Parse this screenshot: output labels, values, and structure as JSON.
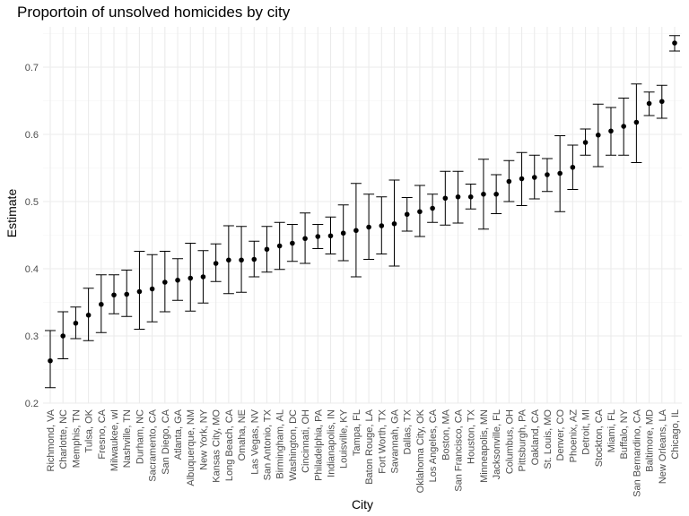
{
  "chart_data": {
    "type": "scatter",
    "title": "Proportoin of unsolved homicides by city",
    "xlabel": "City",
    "ylabel": "Estimate",
    "ylim": [
      0.2,
      0.76
    ],
    "yticks": [
      "0.2",
      "0.3",
      "0.4",
      "0.5",
      "0.6",
      "0.7"
    ],
    "grid": true,
    "error_bars": true,
    "points": [
      {
        "city": "Richmond, VA",
        "estimate": 0.263,
        "lower": 0.223,
        "upper": 0.308
      },
      {
        "city": "Charlotte, NC",
        "estimate": 0.3,
        "lower": 0.266,
        "upper": 0.336
      },
      {
        "city": "Memphis, TN",
        "estimate": 0.319,
        "lower": 0.296,
        "upper": 0.343
      },
      {
        "city": "Tulsa, OK",
        "estimate": 0.331,
        "lower": 0.293,
        "upper": 0.371
      },
      {
        "city": "Fresno, CA",
        "estimate": 0.347,
        "lower": 0.305,
        "upper": 0.391
      },
      {
        "city": "Milwaukee, wI",
        "estimate": 0.361,
        "lower": 0.333,
        "upper": 0.391
      },
      {
        "city": "Nashville, TN",
        "estimate": 0.362,
        "lower": 0.329,
        "upper": 0.398
      },
      {
        "city": "Durham, NC",
        "estimate": 0.366,
        "lower": 0.31,
        "upper": 0.426
      },
      {
        "city": "Sacramento, CA",
        "estimate": 0.37,
        "lower": 0.321,
        "upper": 0.421
      },
      {
        "city": "San Diego, CA",
        "estimate": 0.38,
        "lower": 0.336,
        "upper": 0.426
      },
      {
        "city": "Atlanta, GA",
        "estimate": 0.383,
        "lower": 0.353,
        "upper": 0.415
      },
      {
        "city": "Albuquerque, NM",
        "estimate": 0.386,
        "lower": 0.337,
        "upper": 0.438
      },
      {
        "city": "New York, NY",
        "estimate": 0.388,
        "lower": 0.349,
        "upper": 0.427
      },
      {
        "city": "Kansas City, MO",
        "estimate": 0.408,
        "lower": 0.381,
        "upper": 0.437
      },
      {
        "city": "Long Beach, CA",
        "estimate": 0.413,
        "lower": 0.363,
        "upper": 0.464
      },
      {
        "city": "Omaha, NE",
        "estimate": 0.413,
        "lower": 0.365,
        "upper": 0.463
      },
      {
        "city": "Las Vegas, NV",
        "estimate": 0.414,
        "lower": 0.388,
        "upper": 0.441
      },
      {
        "city": "San Antonio, TX",
        "estimate": 0.429,
        "lower": 0.395,
        "upper": 0.463
      },
      {
        "city": "Birmingham, AL",
        "estimate": 0.434,
        "lower": 0.399,
        "upper": 0.469
      },
      {
        "city": "Washington, DC",
        "estimate": 0.438,
        "lower": 0.411,
        "upper": 0.466
      },
      {
        "city": "Cincinnati, OH",
        "estimate": 0.445,
        "lower": 0.408,
        "upper": 0.483
      },
      {
        "city": "Philadelphia, PA",
        "estimate": 0.448,
        "lower": 0.43,
        "upper": 0.466
      },
      {
        "city": "Indianapolis, IN",
        "estimate": 0.449,
        "lower": 0.422,
        "upper": 0.477
      },
      {
        "city": "Louisville, KY",
        "estimate": 0.453,
        "lower": 0.412,
        "upper": 0.495
      },
      {
        "city": "Tampa, FL",
        "estimate": 0.457,
        "lower": 0.388,
        "upper": 0.527
      },
      {
        "city": "Baton Rouge, LA",
        "estimate": 0.462,
        "lower": 0.414,
        "upper": 0.511
      },
      {
        "city": "Fort Worth, TX",
        "estimate": 0.464,
        "lower": 0.422,
        "upper": 0.507
      },
      {
        "city": "Savannah, GA",
        "estimate": 0.467,
        "lower": 0.404,
        "upper": 0.532
      },
      {
        "city": "Dallas, TX",
        "estimate": 0.481,
        "lower": 0.456,
        "upper": 0.506
      },
      {
        "city": "Oklahoma City, OK",
        "estimate": 0.485,
        "lower": 0.448,
        "upper": 0.524
      },
      {
        "city": "Los Angeles, CA",
        "estimate": 0.49,
        "lower": 0.469,
        "upper": 0.511
      },
      {
        "city": "Boston, MA",
        "estimate": 0.505,
        "lower": 0.465,
        "upper": 0.545
      },
      {
        "city": "San Francisco, CA",
        "estimate": 0.507,
        "lower": 0.468,
        "upper": 0.545
      },
      {
        "city": "Houston, TX",
        "estimate": 0.507,
        "lower": 0.489,
        "upper": 0.526
      },
      {
        "city": "Minneapolis, MN",
        "estimate": 0.511,
        "lower": 0.459,
        "upper": 0.563
      },
      {
        "city": "Jacksonville, FL",
        "estimate": 0.511,
        "lower": 0.482,
        "upper": 0.54
      },
      {
        "city": "Columbus, OH",
        "estimate": 0.53,
        "lower": 0.5,
        "upper": 0.561
      },
      {
        "city": "Pittsburgh, PA",
        "estimate": 0.534,
        "lower": 0.494,
        "upper": 0.573
      },
      {
        "city": "Oakland, CA",
        "estimate": 0.536,
        "lower": 0.504,
        "upper": 0.569
      },
      {
        "city": "St. Louis, MO",
        "estimate": 0.54,
        "lower": 0.515,
        "upper": 0.564
      },
      {
        "city": "Denver, CO",
        "estimate": 0.542,
        "lower": 0.485,
        "upper": 0.598
      },
      {
        "city": "Phoenix, AZ",
        "estimate": 0.551,
        "lower": 0.518,
        "upper": 0.584
      },
      {
        "city": "Detroit, MI",
        "estimate": 0.588,
        "lower": 0.569,
        "upper": 0.608
      },
      {
        "city": "Stockton, CA",
        "estimate": 0.599,
        "lower": 0.552,
        "upper": 0.645
      },
      {
        "city": "Miami, FL",
        "estimate": 0.605,
        "lower": 0.569,
        "upper": 0.64
      },
      {
        "city": "Buffalo, NY",
        "estimate": 0.612,
        "lower": 0.569,
        "upper": 0.654
      },
      {
        "city": "San Bernardino, CA",
        "estimate": 0.618,
        "lower": 0.558,
        "upper": 0.675
      },
      {
        "city": "Baltimore, MD",
        "estimate": 0.646,
        "lower": 0.628,
        "upper": 0.663
      },
      {
        "city": "New Orleans, LA",
        "estimate": 0.649,
        "lower": 0.624,
        "upper": 0.673
      },
      {
        "city": "Chicago, IL",
        "estimate": 0.736,
        "lower": 0.724,
        "upper": 0.747
      }
    ],
    "colors": {
      "point": "#000000",
      "errorbar": "#000000",
      "grid_major": "#ebebeb",
      "grid_minor": "#f4f4f4",
      "tick_label": "#4d4d4d"
    }
  }
}
